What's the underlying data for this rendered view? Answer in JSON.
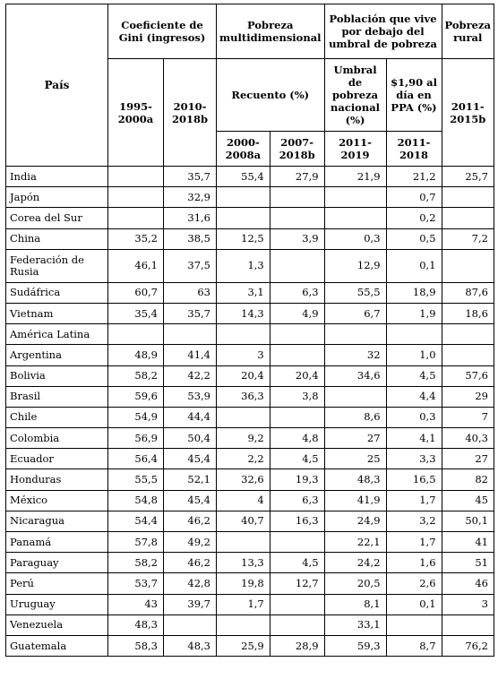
{
  "header": {
    "country": "País",
    "gini": "Coeficiente de Gini (ingresos)",
    "gini_y1": "1995-2000a",
    "gini_y2": "2010-2018b",
    "multi": "Pobreza multidimensional",
    "recuento": "Recuento (%)",
    "multi_y1": "2000-2008a",
    "multi_y2": "2007-2018b",
    "umbral": "Población que vive por debajo del umbral de pobreza",
    "nacional": "Umbral de pobreza nacional (%)",
    "ppa": "$1,90 al día en PPA (%)",
    "umbral_y1": "2011-2019",
    "umbral_y2": "2011-2018",
    "rural": "Pobreza rural",
    "rural_y": "2011-2015b"
  },
  "rows": [
    {
      "country": "India",
      "c1": "",
      "c2": "35,7",
      "c3": "55,4",
      "c4": "27,9",
      "c5": "21,9",
      "c6": "21,2",
      "c7": "25,7"
    },
    {
      "country": "Japón",
      "c1": "",
      "c2": "32,9",
      "c3": "",
      "c4": "",
      "c5": "",
      "c6": "0,7",
      "c7": ""
    },
    {
      "country": "Corea del Sur",
      "c1": "",
      "c2": "31,6",
      "c3": "",
      "c4": "",
      "c5": "",
      "c6": "0,2",
      "c7": ""
    },
    {
      "country": "China",
      "c1": "35,2",
      "c2": "38,5",
      "c3": "12,5",
      "c4": "3,9",
      "c5": "0,3",
      "c6": "0,5",
      "c7": "7,2"
    },
    {
      "country": "Federación de Rusia",
      "c1": "46,1",
      "c2": "37,5",
      "c3": "1,3",
      "c4": "",
      "c5": "12,9",
      "c6": "0,1",
      "c7": "",
      "tall": true
    },
    {
      "country": "Sudáfrica",
      "c1": "60,7",
      "c2": "63",
      "c3": "3,1",
      "c4": "6,3",
      "c5": "55,5",
      "c6": "18,9",
      "c7": "87,6"
    },
    {
      "country": "Vietnam",
      "c1": "35,4",
      "c2": "35,7",
      "c3": "14,3",
      "c4": "4,9",
      "c5": "6,7",
      "c6": "1,9",
      "c7": "18,6"
    },
    {
      "country": "América Latina",
      "c1": "",
      "c2": "",
      "c3": "",
      "c4": "",
      "c5": "",
      "c6": "",
      "c7": ""
    },
    {
      "country": "Argentina",
      "c1": "48,9",
      "c2": "41,4",
      "c3": "3",
      "c4": "",
      "c5": "32",
      "c6": "1,0",
      "c7": ""
    },
    {
      "country": "Bolivia",
      "c1": "58,2",
      "c2": "42,2",
      "c3": "20,4",
      "c4": "20,4",
      "c5": "34,6",
      "c6": "4,5",
      "c7": "57,6"
    },
    {
      "country": "Brasil",
      "c1": "59,6",
      "c2": "53,9",
      "c3": "36,3",
      "c4": "3,8",
      "c5": "",
      "c6": "4,4",
      "c7": "29"
    },
    {
      "country": "Chile",
      "c1": "54,9",
      "c2": "44,4",
      "c3": "",
      "c4": "",
      "c5": "8,6",
      "c6": "0,3",
      "c7": "7"
    },
    {
      "country": "Colombia",
      "c1": "56,9",
      "c2": "50,4",
      "c3": "9,2",
      "c4": "4,8",
      "c5": "27",
      "c6": "4,1",
      "c7": "40,3"
    },
    {
      "country": "Ecuador",
      "c1": "56,4",
      "c2": "45,4",
      "c3": "2,2",
      "c4": "4,5",
      "c5": "25",
      "c6": "3,3",
      "c7": "27"
    },
    {
      "country": "Honduras",
      "c1": "55,5",
      "c2": "52,1",
      "c3": "32,6",
      "c4": "19,3",
      "c5": "48,3",
      "c6": "16,5",
      "c7": "82"
    },
    {
      "country": "México",
      "c1": "54,8",
      "c2": "45,4",
      "c3": "4",
      "c4": "6,3",
      "c5": "41,9",
      "c6": "1,7",
      "c7": "45"
    },
    {
      "country": "Nicaragua",
      "c1": "54,4",
      "c2": "46,2",
      "c3": "40,7",
      "c4": "16,3",
      "c5": "24,9",
      "c6": "3,2",
      "c7": "50,1"
    },
    {
      "country": "Panamá",
      "c1": "57,8",
      "c2": "49,2",
      "c3": "",
      "c4": "",
      "c5": "22,1",
      "c6": "1,7",
      "c7": "41"
    },
    {
      "country": "Paraguay",
      "c1": "58,2",
      "c2": "46,2",
      "c3": "13,3",
      "c4": "4,5",
      "c5": "24,2",
      "c6": "1,6",
      "c7": "51"
    },
    {
      "country": "Perú",
      "c1": "53,7",
      "c2": "42,8",
      "c3": "19,8",
      "c4": "12,7",
      "c5": "20,5",
      "c6": "2,6",
      "c7": "46"
    },
    {
      "country": "Uruguay",
      "c1": "43",
      "c2": "39,7",
      "c3": "1,7",
      "c4": "",
      "c5": "8,1",
      "c6": "0,1",
      "c7": "3"
    },
    {
      "country": "Venezuela",
      "c1": "48,3",
      "c2": "",
      "c3": "",
      "c4": "",
      "c5": "33,1",
      "c6": "",
      "c7": ""
    },
    {
      "country": "Guatemala",
      "c1": "58,3",
      "c2": "48,3",
      "c3": "25,9",
      "c4": "28,9",
      "c5": "59,3",
      "c6": "8,7",
      "c7": "76,2"
    }
  ]
}
